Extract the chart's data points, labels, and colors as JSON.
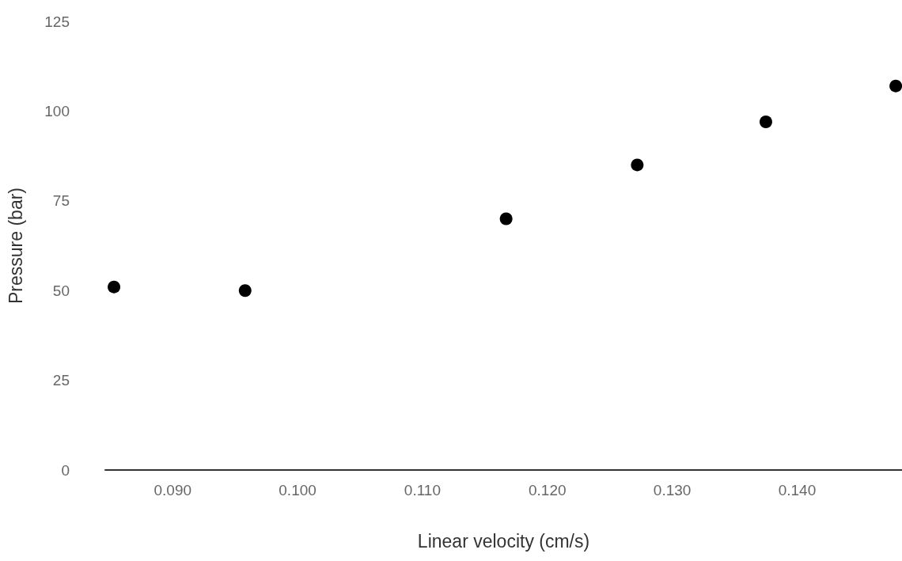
{
  "chart_data": {
    "type": "scatter",
    "xlabel": "Linear velocity (cm/s)",
    "ylabel": "Pressure (bar)",
    "x": [
      0.0853,
      0.0958,
      0.1167,
      0.1272,
      0.1375,
      0.1479
    ],
    "values": [
      51,
      50,
      70,
      85,
      97,
      107
    ],
    "color": "#000000",
    "marker": "circle",
    "grid": false,
    "xlim": [
      0.0846,
      0.1484
    ],
    "xticks": [
      {
        "value": 0.09,
        "label": "0.090"
      },
      {
        "value": 0.1,
        "label": "0.100"
      },
      {
        "value": 0.11,
        "label": "0.110"
      },
      {
        "value": 0.12,
        "label": "0.120"
      },
      {
        "value": 0.13,
        "label": "0.130"
      },
      {
        "value": 0.14,
        "label": "0.140"
      }
    ],
    "ylim": [
      0,
      125
    ],
    "yticks": [
      0,
      25,
      50,
      75,
      100,
      125
    ]
  }
}
